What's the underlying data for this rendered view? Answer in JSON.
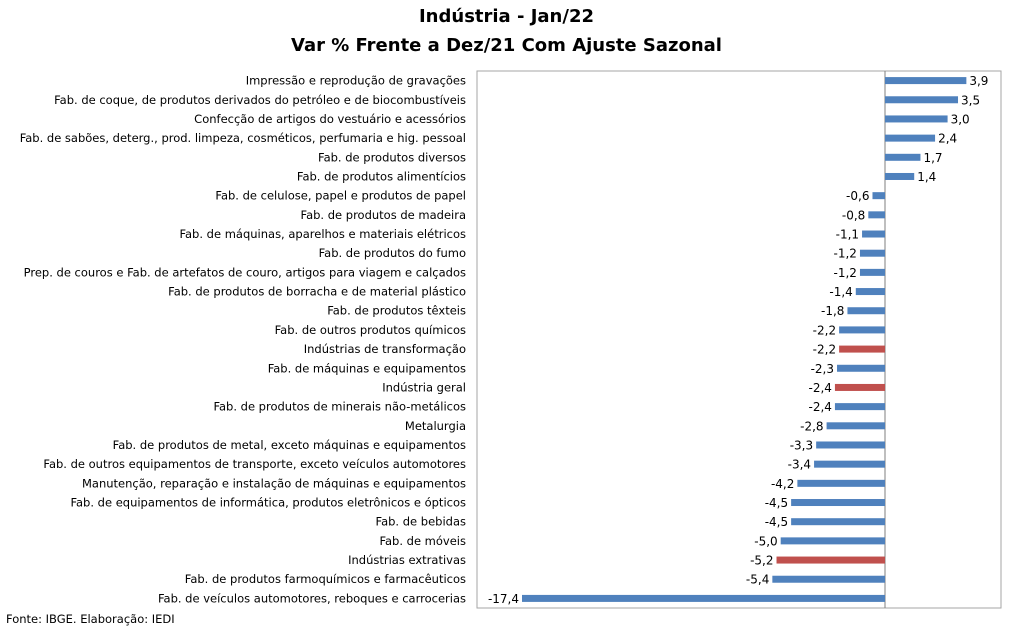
{
  "chart_data": {
    "type": "bar",
    "orientation": "horizontal",
    "title": "Indústria - Jan/22",
    "subtitle": "Var % Frente a Dez/21 Com Ajuste Sazonal",
    "source": "Fonte: IBGE. Elaboração: IEDI",
    "colors": {
      "default": "#4f81bd",
      "highlight": "#c0504d",
      "plot_border": "#a6a6a6"
    },
    "gridlines": false,
    "legend": "none",
    "xlim": [
      -17.4,
      3.9
    ],
    "categories": [
      "Impressão e reprodução de gravações",
      "Fab. de coque, de produtos derivados do petróleo e de biocombustíveis",
      "Confecção de artigos do vestuário e acessórios",
      "Fab. de sabões, deterg., prod. limpeza, cosméticos, perfumaria e hig. pessoal",
      "Fab. de produtos diversos",
      "Fab. de produtos alimentícios",
      "Fab. de celulose, papel e produtos de papel",
      "Fab. de produtos de madeira",
      "Fab. de máquinas, aparelhos e materiais elétricos",
      "Fab. de produtos do fumo",
      "Prep. de couros e Fab. de artefatos de couro, artigos para viagem e calçados",
      "Fab. de produtos de borracha e de material plástico",
      "Fab. de produtos têxteis",
      "Fab. de outros produtos químicos",
      "Indústrias de transformação",
      "Fab. de máquinas e equipamentos",
      "Indústria geral",
      "Fab. de produtos de minerais não-metálicos",
      "Metalurgia",
      "Fab. de produtos de metal, exceto máquinas e equipamentos",
      "Fab. de outros equipamentos de transporte, exceto veículos automotores",
      "Manutenção, reparação e instalação de máquinas e equipamentos",
      "Fab. de equipamentos de informática, produtos eletrônicos e ópticos",
      "Fab. de bebidas",
      "Fab. de móveis",
      "Indústrias extrativas",
      "Fab. de produtos farmoquímicos e farmacêuticos",
      "Fab. de veículos automotores, reboques e carrocerias"
    ],
    "values": [
      3.9,
      3.5,
      3.0,
      2.4,
      1.7,
      1.4,
      -0.6,
      -0.8,
      -1.1,
      -1.2,
      -1.2,
      -1.4,
      -1.8,
      -2.2,
      -2.2,
      -2.3,
      -2.4,
      -2.4,
      -2.8,
      -3.3,
      -3.4,
      -4.2,
      -4.5,
      -4.5,
      -5.0,
      -5.2,
      -5.4,
      -17.4
    ],
    "value_labels": [
      "3,9",
      "3,5",
      "3,0",
      "2,4",
      "1,7",
      "1,4",
      "-0,6",
      "-0,8",
      "-1,1",
      "-1,2",
      "-1,2",
      "-1,4",
      "-1,8",
      "-2,2",
      "-2,2",
      "-2,3",
      "-2,4",
      "-2,4",
      "-2,8",
      "-3,3",
      "-3,4",
      "-4,2",
      "-4,5",
      "-4,5",
      "-5,0",
      "-5,2",
      "-5,4",
      "-17,4"
    ],
    "highlighted": [
      "Indústrias de transformação",
      "Indústria geral",
      "Indústrias extrativas"
    ]
  }
}
